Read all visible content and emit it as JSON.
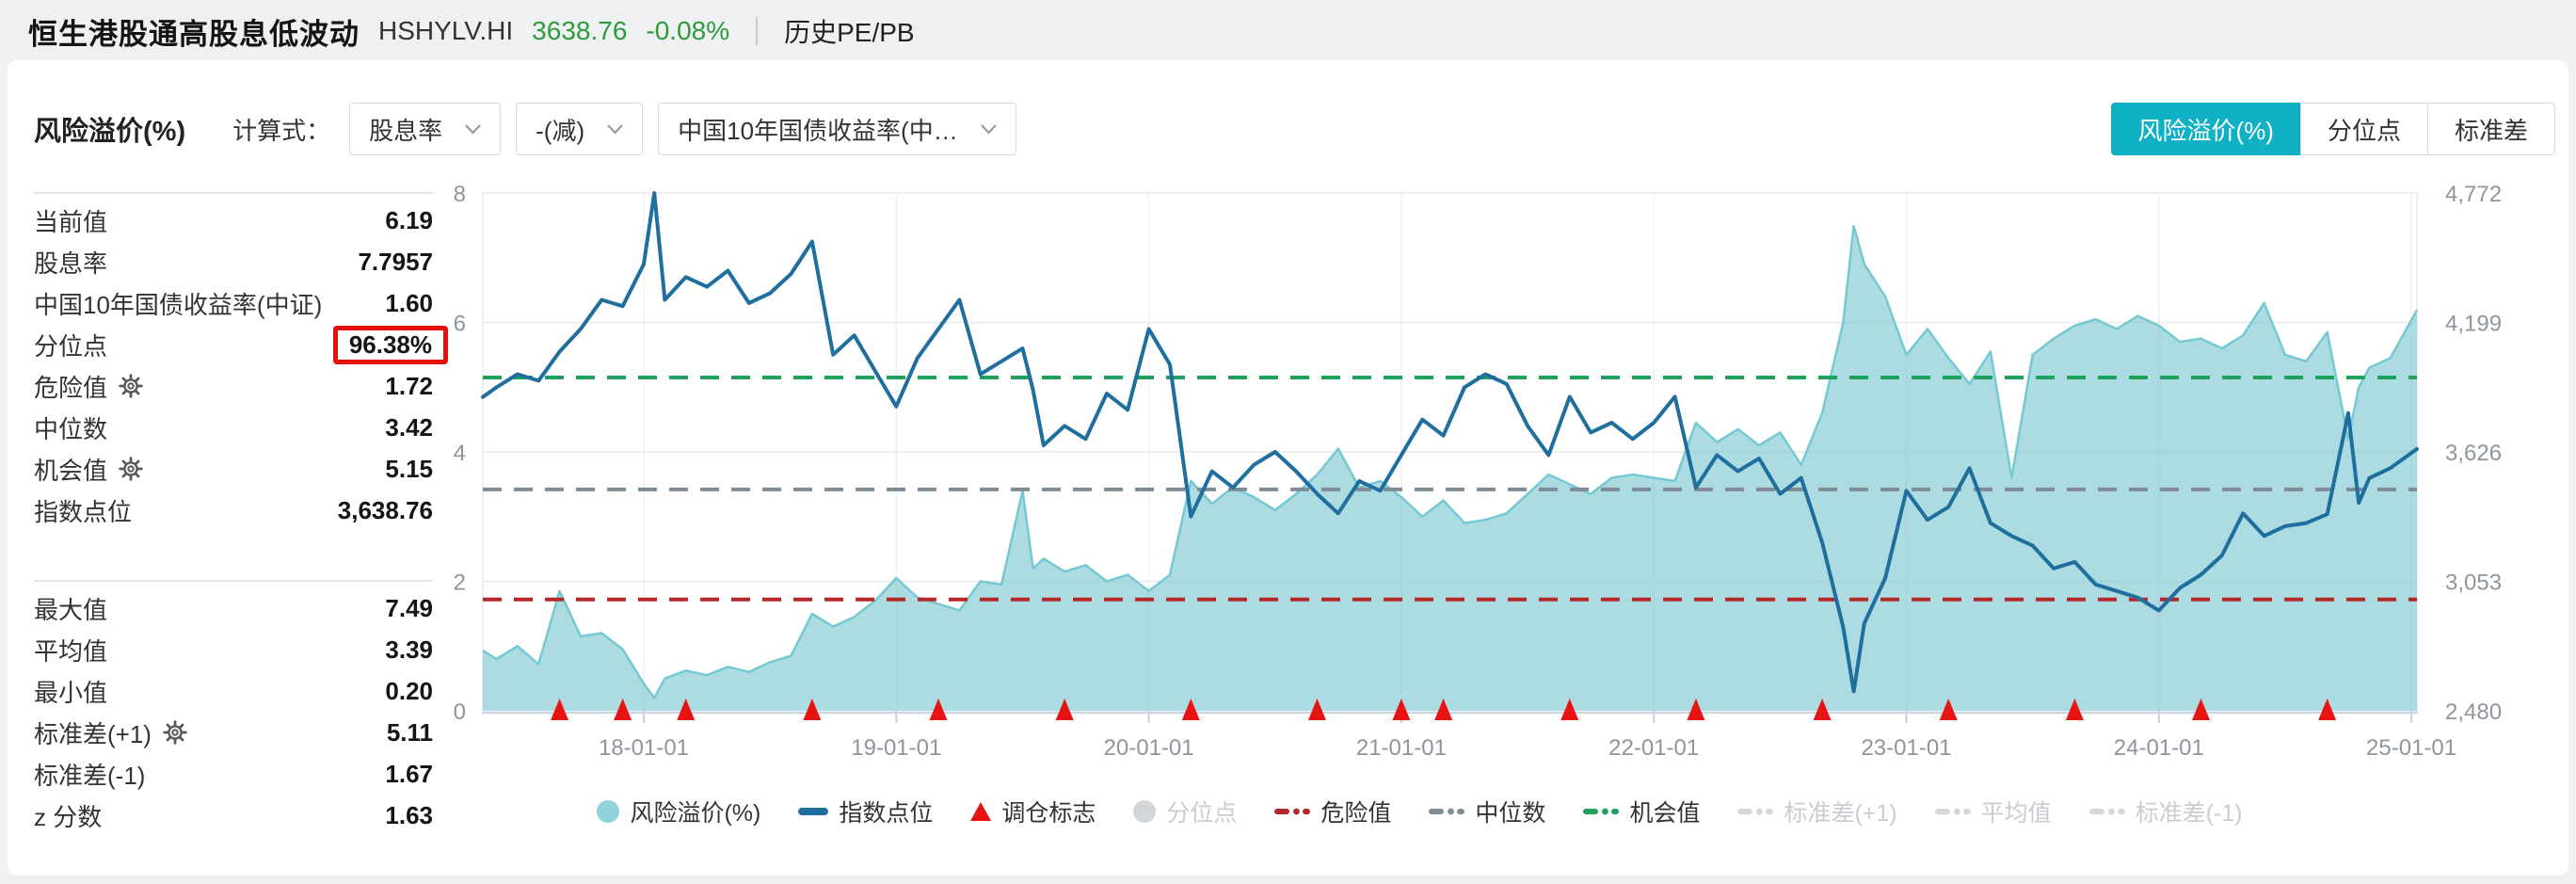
{
  "colors": {
    "accent_teal": "#10b1c4",
    "highlight_red": "#e8100c",
    "quote_green": "#2f9a3d",
    "panel_bg": "#ffffff",
    "page_bg": "#eef0f1"
  },
  "header": {
    "title": "恒生港股通高股息低波动",
    "code": "HSHYLV.HI",
    "price": "3638.76",
    "change": "-0.08%",
    "pe_pb_label": "历史PE/PB"
  },
  "toolbar": {
    "metric_label": "风险溢价(%)",
    "formula_label": "计算式：",
    "dropdowns": [
      {
        "value": "股息率"
      },
      {
        "value": "-(减)"
      },
      {
        "value": "中国10年国债收益率(中…"
      }
    ],
    "tabs": [
      {
        "label": "风险溢价(%)",
        "active": true
      },
      {
        "label": "分位点",
        "active": false
      },
      {
        "label": "标准差",
        "active": false
      }
    ]
  },
  "stats": {
    "group1": [
      {
        "label": "当前值",
        "value": "6.19"
      },
      {
        "label": "股息率",
        "value": "7.7957"
      },
      {
        "label": "中国10年国债收益率(中证)",
        "value": "1.60"
      },
      {
        "label": "分位点",
        "value": "96.38%",
        "highlighted": true
      },
      {
        "label": "危险值",
        "value": "1.72",
        "gear": true
      },
      {
        "label": "中位数",
        "value": "3.42"
      },
      {
        "label": "机会值",
        "value": "5.15",
        "gear": true
      },
      {
        "label": "指数点位",
        "value": "3,638.76"
      }
    ],
    "group2": [
      {
        "label": "最大值",
        "value": "7.49"
      },
      {
        "label": "平均值",
        "value": "3.39"
      },
      {
        "label": "最小值",
        "value": "0.20"
      },
      {
        "label": "标准差(+1)",
        "value": "5.11",
        "gear": true
      },
      {
        "label": "标准差(-1)",
        "value": "1.67"
      },
      {
        "label": "z 分数",
        "value": "1.63"
      }
    ]
  },
  "legend": [
    {
      "label": "风险溢价(%)",
      "marker": "circle",
      "color": "#8fd2da",
      "active": true
    },
    {
      "label": "指数点位",
      "marker": "line",
      "color": "#1f6f9e",
      "active": true
    },
    {
      "label": "调仓标志",
      "marker": "triangle",
      "color": "#e81414",
      "active": true
    },
    {
      "label": "分位点",
      "marker": "circle",
      "color": "#d3d7da",
      "active": false
    },
    {
      "label": "危险值",
      "marker": "dashdot",
      "color": "#b5282a",
      "active": true
    },
    {
      "label": "中位数",
      "marker": "dashdot",
      "color": "#7f8b95",
      "active": true
    },
    {
      "label": "机会值",
      "marker": "dashdot",
      "color": "#1da25d",
      "active": true
    },
    {
      "label": "标准差(+1)",
      "marker": "dashdot",
      "color": "#d3d7da",
      "active": false
    },
    {
      "label": "平均值",
      "marker": "dashdot",
      "color": "#d3d7da",
      "active": false
    },
    {
      "label": "标准差(-1)",
      "marker": "dashdot",
      "color": "#d3d7da",
      "active": false
    }
  ],
  "chart_data": {
    "type": "area+line",
    "title": "",
    "grid": true,
    "legend_position": "bottom",
    "x_ticks": [
      "18-01-01",
      "19-01-01",
      "20-01-01",
      "21-01-01",
      "22-01-01",
      "23-01-01",
      "24-01-01",
      "25-01-01"
    ],
    "left_axis": {
      "min": 0,
      "max": 8,
      "ticks": [
        0,
        2,
        4,
        6,
        8
      ]
    },
    "right_axis": {
      "min": 2480,
      "max": 4772,
      "ticks": [
        "2,480",
        "3,053",
        "3,626",
        "4,199",
        "4,772"
      ]
    },
    "x": [
      "2017-05",
      "2017-06",
      "2017-07",
      "2017-08",
      "2017-09",
      "2017-10",
      "2017-11",
      "2017-12",
      "2018-01",
      "2018-01.5",
      "2018-02",
      "2018-03",
      "2018-04",
      "2018-05",
      "2018-06",
      "2018-07",
      "2018-08",
      "2018-09",
      "2018-10",
      "2018-11",
      "2018-12",
      "2019-01",
      "2019-02",
      "2019-03",
      "2019-04",
      "2019-05",
      "2019-06",
      "2019-07",
      "2019-07.5",
      "2019-08",
      "2019-09",
      "2019-10",
      "2019-11",
      "2019-12",
      "2020-01",
      "2020-02",
      "2020-03",
      "2020-04",
      "2020-05",
      "2020-06",
      "2020-07",
      "2020-08",
      "2020-09",
      "2020-10",
      "2020-11",
      "2020-12",
      "2021-01",
      "2021-02",
      "2021-03",
      "2021-04",
      "2021-05",
      "2021-06",
      "2021-07",
      "2021-08",
      "2021-09",
      "2021-10",
      "2021-11",
      "2021-12",
      "2022-01",
      "2022-02",
      "2022-03",
      "2022-04",
      "2022-05",
      "2022-06",
      "2022-07",
      "2022-08",
      "2022-09",
      "2022-10",
      "2022-10.5",
      "2022-11",
      "2022-12",
      "2023-01",
      "2023-02",
      "2023-03",
      "2023-04",
      "2023-05",
      "2023-06",
      "2023-07",
      "2023-08",
      "2023-09",
      "2023-10",
      "2023-11",
      "2023-12",
      "2024-01",
      "2024-02",
      "2024-03",
      "2024-04",
      "2024-05",
      "2024-06",
      "2024-07",
      "2024-08",
      "2024-09",
      "2024-10",
      "2024-10.5",
      "2024-11",
      "2024-12",
      "2025-01"
    ],
    "series": [
      {
        "name": "风险溢价(%)",
        "type": "area",
        "axis": "left",
        "line_color": "#74c9d3",
        "fill_color": "rgba(122,197,208,0.62)",
        "values": [
          0.93,
          0.8,
          1.0,
          0.72,
          1.85,
          1.15,
          1.2,
          0.95,
          0.42,
          0.2,
          0.5,
          0.62,
          0.55,
          0.68,
          0.6,
          0.75,
          0.85,
          1.5,
          1.3,
          1.45,
          1.7,
          2.05,
          1.75,
          1.65,
          1.55,
          2.0,
          1.95,
          3.4,
          2.2,
          2.35,
          2.15,
          2.25,
          2.0,
          2.1,
          1.85,
          2.1,
          3.55,
          3.2,
          3.45,
          3.3,
          3.1,
          3.35,
          3.65,
          4.05,
          3.45,
          3.55,
          3.3,
          3.0,
          3.25,
          2.9,
          2.95,
          3.05,
          3.35,
          3.65,
          3.5,
          3.35,
          3.6,
          3.65,
          3.6,
          3.55,
          4.45,
          4.15,
          4.35,
          4.1,
          4.3,
          3.8,
          4.6,
          6.0,
          7.49,
          6.9,
          6.4,
          5.5,
          5.9,
          5.45,
          5.05,
          5.55,
          3.6,
          5.5,
          5.75,
          5.95,
          6.05,
          5.9,
          6.1,
          5.95,
          5.7,
          5.75,
          5.6,
          5.8,
          6.3,
          5.5,
          5.4,
          5.85,
          4.2,
          5.0,
          5.3,
          5.45,
          6.19
        ]
      },
      {
        "name": "指数点位",
        "type": "line",
        "axis": "right",
        "line_color": "#1f6f9e",
        "values": [
          3869,
          3912,
          3970,
          3941,
          4070,
          4170,
          4299,
          4271,
          4457,
          4772,
          4299,
          4400,
          4357,
          4428,
          4285,
          4328,
          4414,
          4557,
          4056,
          4142,
          3984,
          3827,
          4041,
          4170,
          4299,
          3970,
          4027,
          4084,
          3900,
          3655,
          3741,
          3683,
          3884,
          3812,
          4170,
          4013,
          3340,
          3540,
          3468,
          3569,
          3626,
          3540,
          3440,
          3354,
          3497,
          3454,
          3612,
          3769,
          3698,
          3912,
          3970,
          3927,
          3741,
          3612,
          3870,
          3712,
          3755,
          3683,
          3755,
          3870,
          3468,
          3612,
          3540,
          3597,
          3440,
          3511,
          3225,
          2850,
          2566,
          2867,
          3067,
          3454,
          3325,
          3382,
          3554,
          3311,
          3254,
          3211,
          3110,
          3139,
          3039,
          3010,
          2981,
          2924,
          3024,
          3082,
          3168,
          3354,
          3254,
          3297,
          3311,
          3350,
          3798,
          3400,
          3510,
          3554,
          3638.76
        ]
      }
    ],
    "ref_lines": [
      {
        "name": "危险值",
        "value": 1.72,
        "color": "#b5282a"
      },
      {
        "name": "中位数",
        "value": 3.42,
        "color": "#7f8b95"
      },
      {
        "name": "机会值",
        "value": 5.15,
        "color": "#1da25d"
      }
    ],
    "markers": {
      "name": "调仓标志",
      "color": "#e81414",
      "dates": [
        "2017-09",
        "2017-12",
        "2018-03",
        "2018-09",
        "2019-03",
        "2019-09",
        "2020-03",
        "2020-09",
        "2021-01",
        "2021-03",
        "2021-09",
        "2022-03",
        "2022-09",
        "2023-03",
        "2023-09",
        "2024-03",
        "2024-09"
      ]
    }
  }
}
